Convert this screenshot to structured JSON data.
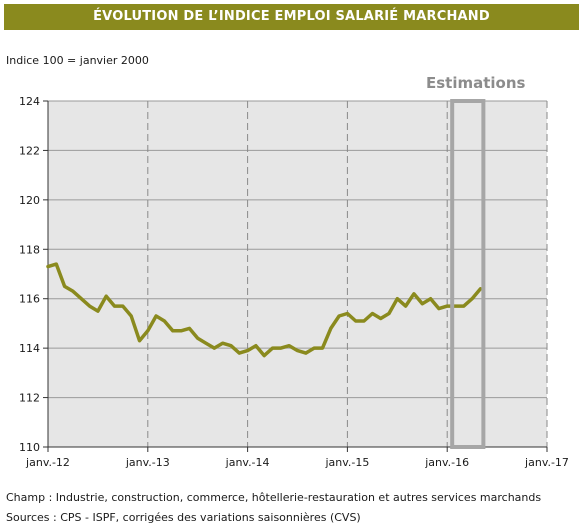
{
  "header": {
    "title": "ÉVOLUTION DE L’INDICE EMPLOI SALARIÉ MARCHAND"
  },
  "chart_data": {
    "type": "line",
    "subtitle": "Indice 100 = janvier 2000",
    "annotation": "Estimations",
    "x_tick_labels": [
      "janv.-12",
      "janv.-13",
      "janv.-14",
      "janv.-15",
      "janv.-16",
      "janv.-17"
    ],
    "y_ticks": [
      110,
      112,
      114,
      116,
      118,
      120,
      122,
      124
    ],
    "ylim": [
      110,
      124
    ],
    "xlim_months": [
      0,
      60
    ],
    "grid": true,
    "line_color": "#8a8a1e",
    "estimation_box_color": "#a6a6a6",
    "estimation_start_month": 48,
    "series": [
      {
        "values": [
          117.3,
          117.4,
          116.5,
          116.3,
          116.0,
          115.7,
          115.5,
          116.1,
          115.7,
          115.7,
          115.3,
          114.3,
          114.7,
          115.3,
          115.1,
          114.7,
          114.7,
          114.8,
          114.4,
          114.2,
          114.0,
          114.2,
          114.1,
          113.8,
          113.9,
          114.1,
          113.7,
          114.0,
          114.0,
          114.1,
          113.9,
          113.8,
          114.0,
          114.0,
          114.8,
          115.3,
          115.4,
          115.1,
          115.1,
          115.4,
          115.2,
          115.4,
          116.0,
          115.7,
          116.2,
          115.8,
          116.0,
          115.6,
          115.7,
          115.7,
          115.7,
          116.0,
          116.4
        ]
      }
    ]
  },
  "footer": {
    "champ": "Champ : Industrie, construction, commerce, hôtellerie-restauration et autres services marchands",
    "sources": "Sources : CPS - ISPF, corrigées des variations saisonnières (CVS)"
  }
}
